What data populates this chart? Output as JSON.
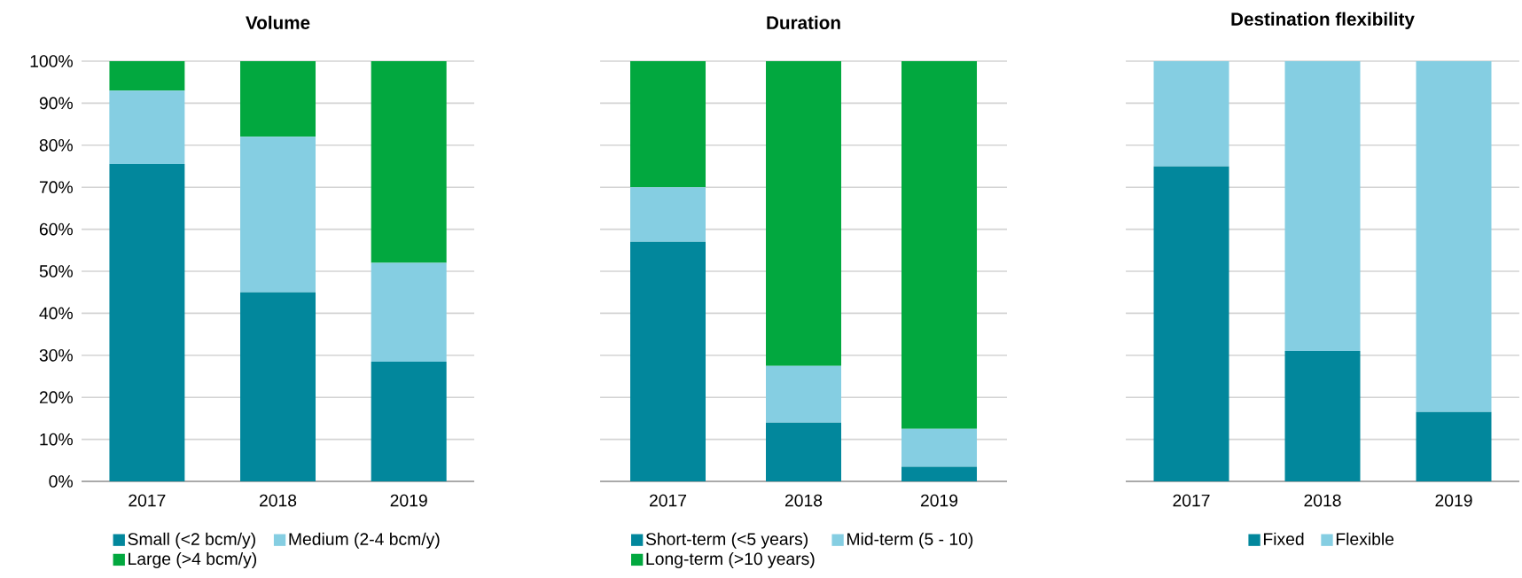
{
  "chart_data": [
    {
      "type": "bar",
      "title": "Volume",
      "categories": [
        "2017",
        "2018",
        "2019"
      ],
      "stacked": true,
      "series": [
        {
          "name": "Small  (<2 bcm/y)",
          "color": "#02879c",
          "values": [
            75.5,
            45,
            28.5
          ]
        },
        {
          "name": "Medium (2-4 bcm/y)",
          "color": "#85cee2",
          "values": [
            17.5,
            37,
            23.5
          ]
        },
        {
          "name": "Large (>4 bcm/y)",
          "color": "#02a83f",
          "values": [
            7,
            18,
            48
          ]
        }
      ],
      "ylim": [
        0,
        100
      ],
      "yticks": [
        {
          "value": 0,
          "label": "0%"
        },
        {
          "value": 10,
          "label": "10%"
        },
        {
          "value": 20,
          "label": "20%"
        },
        {
          "value": 30,
          "label": "30%"
        },
        {
          "value": 40,
          "label": "40%"
        },
        {
          "value": 50,
          "label": "50%"
        },
        {
          "value": 60,
          "label": "60%"
        },
        {
          "value": 70,
          "label": "70%"
        },
        {
          "value": 80,
          "label": "80%"
        },
        {
          "value": 90,
          "label": "90%"
        },
        {
          "value": 100,
          "label": "100%"
        }
      ],
      "grid": "y",
      "legend": "bottom"
    },
    {
      "type": "bar",
      "title": "Duration",
      "categories": [
        "2017",
        "2018",
        "2019"
      ],
      "stacked": true,
      "series": [
        {
          "name": "Short-term (<5 years)",
          "color": "#02879c",
          "values": [
            57,
            14,
            3.5
          ]
        },
        {
          "name": "Mid-term (5 - 10)",
          "color": "#85cee2",
          "values": [
            13,
            13.5,
            9
          ]
        },
        {
          "name": "Long-term (>10 years)",
          "color": "#02a83f",
          "values": [
            30,
            72.5,
            87.5
          ]
        }
      ],
      "ylim": [
        0,
        100
      ],
      "yticks": [
        {
          "value": 0,
          "label": null
        },
        {
          "value": 10,
          "label": null
        },
        {
          "value": 20,
          "label": null
        },
        {
          "value": 30,
          "label": null
        },
        {
          "value": 40,
          "label": null
        },
        {
          "value": 50,
          "label": null
        },
        {
          "value": 60,
          "label": null
        },
        {
          "value": 70,
          "label": null
        },
        {
          "value": 80,
          "label": null
        },
        {
          "value": 90,
          "label": null
        },
        {
          "value": 100,
          "label": null
        }
      ],
      "grid": "y",
      "legend": "bottom",
      "tick_labels": "x"
    },
    {
      "type": "bar",
      "title": "Destination flexibility",
      "categories": [
        "2017",
        "2018",
        "2019"
      ],
      "stacked": true,
      "series": [
        {
          "name": "Fixed",
          "color": "#02879c",
          "values": [
            75,
            31,
            16.5
          ]
        },
        {
          "name": "Flexible",
          "color": "#85cee2",
          "values": [
            25,
            69,
            83.5
          ]
        }
      ],
      "ylim": [
        0,
        100
      ],
      "yticks": [
        {
          "value": 0,
          "label": null
        },
        {
          "value": 10,
          "label": null
        },
        {
          "value": 20,
          "label": null
        },
        {
          "value": 30,
          "label": null
        },
        {
          "value": 40,
          "label": null
        },
        {
          "value": 50,
          "label": null
        },
        {
          "value": 60,
          "label": null
        },
        {
          "value": 70,
          "label": null
        },
        {
          "value": 80,
          "label": null
        },
        {
          "value": 90,
          "label": null
        },
        {
          "value": 100,
          "label": null
        }
      ],
      "grid": "y",
      "legend": "bottom",
      "tick_labels": "x"
    }
  ]
}
